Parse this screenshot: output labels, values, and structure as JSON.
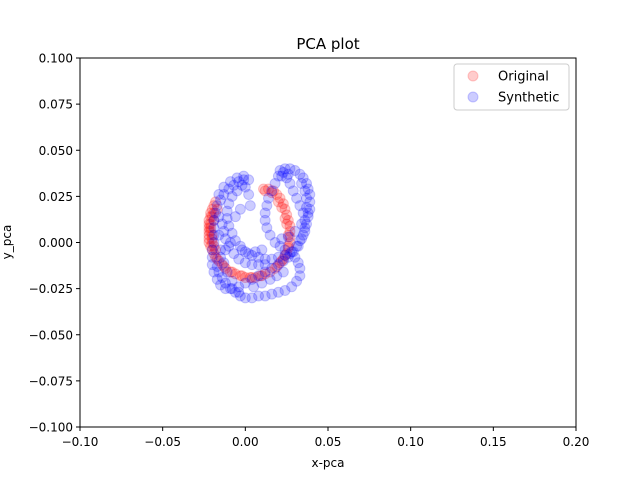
{
  "chart_data": {
    "type": "scatter",
    "title": "PCA plot",
    "xlabel": "x-pca",
    "ylabel": "y_pca",
    "xlim": [
      -0.1,
      0.2
    ],
    "ylim": [
      -0.1,
      0.1
    ],
    "xticks": [
      -0.1,
      -0.05,
      0.0,
      0.05,
      0.1,
      0.15,
      0.2
    ],
    "yticks": [
      -0.1,
      -0.075,
      -0.05,
      -0.025,
      0.0,
      0.025,
      0.05,
      0.075,
      0.1
    ],
    "xtick_labels": [
      "−0.10",
      "−0.05",
      "0.00",
      "0.05",
      "0.10",
      "0.15",
      "0.20"
    ],
    "ytick_labels": [
      "−0.100",
      "−0.075",
      "−0.050",
      "−0.025",
      "0.000",
      "0.025",
      "0.050",
      "0.075",
      "0.100"
    ],
    "grid": false,
    "legend_position": "top-right",
    "series": [
      {
        "name": "Original",
        "color": "#ff0000",
        "alpha": 0.2,
        "points": [
          [
            0.011,
            0.029
          ],
          [
            0.014,
            0.029
          ],
          [
            0.017,
            0.028
          ],
          [
            0.019,
            0.026
          ],
          [
            0.021,
            0.024
          ],
          [
            0.023,
            0.021
          ],
          [
            0.024,
            0.018
          ],
          [
            0.025,
            0.015
          ],
          [
            0.026,
            0.012
          ],
          [
            0.027,
            0.009
          ],
          [
            0.027,
            0.006
          ],
          [
            0.027,
            0.003
          ],
          [
            0.027,
            0.0
          ],
          [
            0.026,
            -0.003
          ],
          [
            0.025,
            -0.006
          ],
          [
            0.023,
            -0.009
          ],
          [
            0.021,
            -0.011
          ],
          [
            0.018,
            -0.014
          ],
          [
            0.015,
            -0.016
          ],
          [
            0.012,
            -0.017
          ],
          [
            0.009,
            -0.018
          ],
          [
            0.006,
            -0.019
          ],
          [
            0.003,
            -0.019
          ],
          [
            0.0,
            -0.019
          ],
          [
            -0.003,
            -0.018
          ],
          [
            -0.006,
            -0.017
          ],
          [
            -0.009,
            -0.016
          ],
          [
            -0.012,
            -0.014
          ],
          [
            -0.014,
            -0.012
          ],
          [
            -0.016,
            -0.01
          ],
          [
            -0.018,
            -0.008
          ],
          [
            -0.019,
            -0.006
          ],
          [
            -0.02,
            -0.004
          ],
          [
            -0.021,
            -0.002
          ],
          [
            -0.022,
            0.0
          ],
          [
            -0.022,
            0.002
          ],
          [
            -0.022,
            0.004
          ],
          [
            -0.022,
            0.006
          ],
          [
            -0.022,
            0.008
          ],
          [
            -0.022,
            0.01
          ],
          [
            -0.022,
            0.012
          ],
          [
            -0.021,
            0.014
          ],
          [
            -0.021,
            0.016
          ],
          [
            -0.02,
            0.018
          ],
          [
            -0.019,
            0.02
          ],
          [
            -0.018,
            0.022
          ],
          [
            -0.021,
            0.01
          ],
          [
            -0.02,
            0.004
          ],
          [
            -0.019,
            -0.002
          ],
          [
            -0.02,
            0.014
          ],
          [
            -0.021,
            0.006
          ],
          [
            -0.019,
            0.012
          ],
          [
            -0.02,
            0.0
          ],
          [
            -0.018,
            -0.004
          ],
          [
            -0.017,
            0.018
          ],
          [
            0.012,
            0.028
          ],
          [
            0.016,
            0.027
          ],
          [
            0.02,
            0.022
          ],
          [
            0.022,
            0.019
          ],
          [
            0.024,
            0.013
          ],
          [
            0.025,
            0.01
          ],
          [
            0.026,
            0.004
          ],
          [
            0.026,
            -0.002
          ],
          [
            0.024,
            -0.007
          ],
          [
            0.022,
            -0.01
          ],
          [
            0.019,
            -0.013
          ],
          [
            0.01,
            -0.018
          ],
          [
            0.004,
            -0.019
          ],
          [
            -0.002,
            -0.018
          ],
          [
            -0.008,
            -0.016
          ],
          [
            -0.013,
            -0.013
          ],
          [
            -0.017,
            -0.009
          ],
          [
            -0.02,
            0.002
          ],
          [
            -0.021,
            0.008
          ],
          [
            -0.019,
            0.016
          ]
        ]
      },
      {
        "name": "Synthetic",
        "color": "#0000ff",
        "alpha": 0.2,
        "points": [
          [
            0.021,
            0.039
          ],
          [
            0.024,
            0.04
          ],
          [
            0.027,
            0.04
          ],
          [
            0.03,
            0.039
          ],
          [
            0.033,
            0.037
          ],
          [
            0.035,
            0.035
          ],
          [
            0.037,
            0.032
          ],
          [
            0.038,
            0.029
          ],
          [
            0.039,
            0.026
          ],
          [
            0.039,
            0.022
          ],
          [
            0.039,
            0.018
          ],
          [
            0.038,
            0.014
          ],
          [
            0.037,
            0.01
          ],
          [
            0.036,
            0.006
          ],
          [
            0.034,
            0.002
          ],
          [
            0.032,
            -0.002
          ],
          [
            0.029,
            -0.005
          ],
          [
            0.026,
            -0.008
          ],
          [
            0.023,
            -0.01
          ],
          [
            0.02,
            -0.012
          ],
          [
            0.016,
            -0.014
          ],
          [
            0.012,
            -0.016
          ],
          [
            0.008,
            -0.018
          ],
          [
            0.004,
            -0.02
          ],
          [
            0.0,
            -0.022
          ],
          [
            -0.004,
            -0.024
          ],
          [
            -0.008,
            -0.025
          ],
          [
            -0.012,
            -0.025
          ],
          [
            -0.015,
            -0.023
          ],
          [
            -0.017,
            -0.02
          ],
          [
            -0.019,
            -0.016
          ],
          [
            -0.02,
            -0.012
          ],
          [
            -0.02,
            -0.008
          ],
          [
            -0.02,
            -0.004
          ],
          [
            -0.019,
            0.0
          ],
          [
            -0.019,
            0.004
          ],
          [
            -0.019,
            0.008
          ],
          [
            -0.019,
            0.012
          ],
          [
            -0.018,
            0.016
          ],
          [
            -0.017,
            0.02
          ],
          [
            -0.015,
            0.023
          ],
          [
            -0.013,
            0.026
          ],
          [
            -0.01,
            0.029
          ],
          [
            -0.007,
            0.031
          ],
          [
            -0.004,
            0.033
          ],
          [
            -0.001,
            0.034
          ],
          [
            0.002,
            0.034
          ],
          [
            -0.002,
            0.031
          ],
          [
            -0.005,
            0.028
          ],
          [
            -0.008,
            0.025
          ],
          [
            -0.01,
            0.021
          ],
          [
            -0.011,
            0.017
          ],
          [
            -0.011,
            0.013
          ],
          [
            -0.01,
            0.009
          ],
          [
            -0.008,
            0.005
          ],
          [
            -0.006,
            0.001
          ],
          [
            -0.003,
            -0.002
          ],
          [
            0.0,
            -0.005
          ],
          [
            0.004,
            -0.007
          ],
          [
            0.008,
            -0.008
          ],
          [
            0.012,
            -0.009
          ],
          [
            0.016,
            -0.009
          ],
          [
            0.02,
            -0.008
          ],
          [
            0.024,
            -0.007
          ],
          [
            0.028,
            -0.005
          ],
          [
            0.031,
            -0.002
          ],
          [
            0.033,
            0.001
          ],
          [
            0.035,
            0.004
          ],
          [
            0.036,
            0.008
          ],
          [
            0.036,
            0.012
          ],
          [
            0.035,
            0.016
          ],
          [
            0.033,
            0.02
          ],
          [
            0.031,
            0.024
          ],
          [
            0.029,
            0.028
          ],
          [
            0.027,
            0.032
          ],
          [
            0.025,
            0.035
          ],
          [
            0.023,
            0.038
          ],
          [
            0.02,
            0.036
          ],
          [
            0.018,
            0.032
          ],
          [
            0.016,
            0.028
          ],
          [
            0.014,
            0.024
          ],
          [
            0.013,
            0.02
          ],
          [
            0.012,
            0.016
          ],
          [
            0.012,
            0.012
          ],
          [
            0.013,
            0.008
          ],
          [
            0.015,
            0.004
          ],
          [
            0.018,
            0.0
          ],
          [
            0.021,
            -0.002
          ],
          [
            0.024,
            -0.004
          ],
          [
            0.027,
            -0.006
          ],
          [
            0.03,
            -0.008
          ],
          [
            0.032,
            -0.011
          ],
          [
            0.033,
            -0.014
          ],
          [
            0.033,
            -0.018
          ],
          [
            0.031,
            -0.021
          ],
          [
            0.028,
            -0.024
          ],
          [
            0.024,
            -0.026
          ],
          [
            0.02,
            -0.027
          ],
          [
            0.016,
            -0.028
          ],
          [
            0.012,
            -0.029
          ],
          [
            0.008,
            -0.029
          ],
          [
            0.004,
            -0.03
          ],
          [
            0.0,
            -0.03
          ],
          [
            -0.003,
            -0.029
          ],
          [
            -0.006,
            -0.027
          ],
          [
            -0.009,
            -0.025
          ],
          [
            -0.012,
            -0.022
          ],
          [
            -0.014,
            -0.019
          ],
          [
            -0.016,
            -0.016
          ],
          [
            -0.017,
            -0.013
          ],
          [
            -0.014,
            0.01
          ],
          [
            -0.013,
            0.006
          ],
          [
            -0.012,
            0.002
          ],
          [
            -0.01,
            -0.002
          ],
          [
            -0.007,
            -0.006
          ],
          [
            -0.004,
            -0.009
          ],
          [
            0.0,
            -0.011
          ],
          [
            0.004,
            -0.012
          ],
          [
            0.008,
            -0.012
          ],
          [
            0.012,
            -0.012
          ],
          [
            -0.016,
            0.026
          ],
          [
            -0.013,
            0.03
          ],
          [
            -0.009,
            0.033
          ],
          [
            -0.005,
            0.035
          ],
          [
            -0.001,
            0.036
          ],
          [
            0.0,
            0.03
          ],
          [
            0.002,
            0.026
          ],
          [
            0.003,
            0.02
          ],
          [
            -0.003,
            0.018
          ],
          [
            -0.006,
            0.014
          ],
          [
            -0.009,
            0.0
          ],
          [
            -0.012,
            -0.004
          ],
          [
            -0.015,
            -0.008
          ],
          [
            0.022,
            0.036
          ],
          [
            0.026,
            0.037
          ],
          [
            0.034,
            0.032
          ],
          [
            0.036,
            0.028
          ],
          [
            0.037,
            0.024
          ],
          [
            0.037,
            0.019
          ],
          [
            0.038,
            0.016
          ],
          [
            0.034,
            0.01
          ],
          [
            0.03,
            0.006
          ],
          [
            0.026,
            0.003
          ],
          [
            0.022,
            0.002
          ],
          [
            0.01,
            -0.004
          ],
          [
            0.006,
            -0.005
          ],
          [
            0.002,
            -0.006
          ],
          [
            -0.002,
            -0.004
          ],
          [
            0.005,
            -0.024
          ],
          [
            0.01,
            -0.022
          ],
          [
            0.015,
            -0.02
          ],
          [
            0.019,
            -0.018
          ],
          [
            0.023,
            -0.016
          ],
          [
            -0.004,
            -0.027
          ],
          [
            -0.008,
            -0.021
          ],
          [
            -0.011,
            -0.016
          ],
          [
            -0.013,
            -0.011
          ],
          [
            -0.015,
            -0.004
          ],
          [
            -0.016,
            0.004
          ],
          [
            -0.016,
            0.014
          ]
        ]
      }
    ]
  }
}
